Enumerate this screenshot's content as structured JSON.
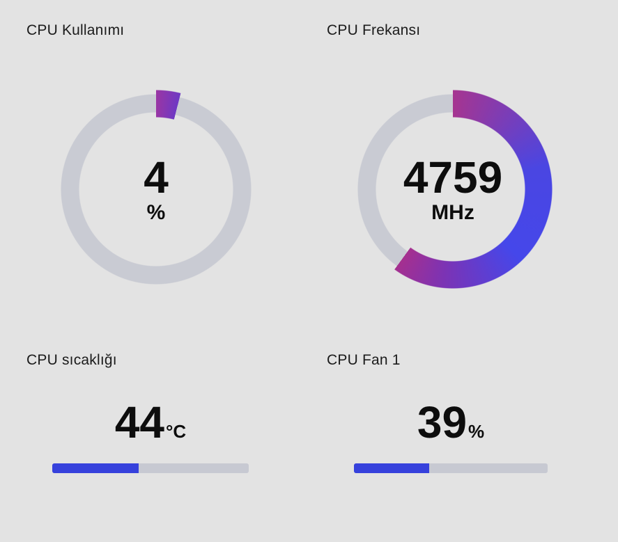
{
  "theme": {
    "background": "#e3e3e3",
    "ring_track_color": "#c9cbd3",
    "bar_track_color": "#c7c9d2",
    "bar_fill_color": "#3641dc",
    "title_color": "#1b1b1b",
    "value_color": "#0d0d0d"
  },
  "panels": {
    "cpu_usage": {
      "title": "CPU Kullanımı",
      "value": "4",
      "unit": "%",
      "percent": 4,
      "gradient": [
        [
          "#9a36a4",
          0
        ],
        [
          "#6e38c4",
          1
        ]
      ]
    },
    "cpu_freq": {
      "title": "CPU Frekansı",
      "value": "4759",
      "unit": "MHz",
      "percent": 60,
      "gradient": [
        [
          "#a63590",
          0
        ],
        [
          "#4a46e2",
          0.35
        ],
        [
          "#4547ea",
          0.63
        ],
        [
          "#7c33b4",
          0.86
        ],
        [
          "#a5308f",
          1
        ]
      ]
    },
    "cpu_temp": {
      "title": "CPU sıcaklığı",
      "value": "44",
      "unit": "°C",
      "percent": 44
    },
    "cpu_fan": {
      "title": "CPU Fan 1",
      "value": "39",
      "unit": "%",
      "percent": 39
    }
  },
  "chart_data": [
    {
      "type": "donut-gauge",
      "title": "CPU Kullanımı",
      "value": 4,
      "unit": "%",
      "fill_fraction": 0.04
    },
    {
      "type": "donut-gauge",
      "title": "CPU Frekansı",
      "value": 4759,
      "unit": "MHz",
      "fill_fraction": 0.6
    },
    {
      "type": "progress-bar",
      "title": "CPU sıcaklığı",
      "value": 44,
      "unit": "°C",
      "fill_fraction": 0.44
    },
    {
      "type": "progress-bar",
      "title": "CPU Fan 1",
      "value": 39,
      "unit": "%",
      "fill_fraction": 0.39
    }
  ]
}
